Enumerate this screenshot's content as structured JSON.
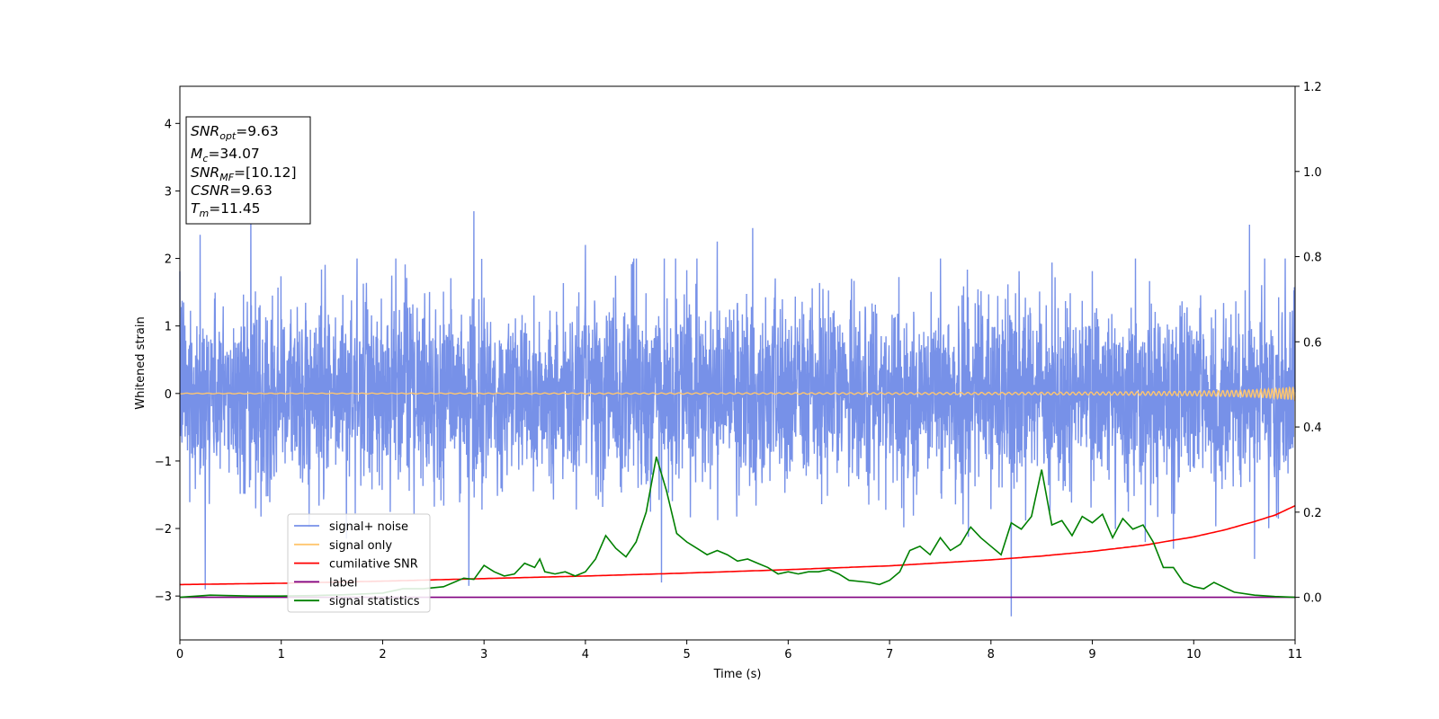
{
  "chart_data": {
    "type": "line",
    "xlabel": "Time (s)",
    "ylabel": "Whitened strain",
    "xlim": [
      0,
      11
    ],
    "ylim": [
      -3.65,
      4.55
    ],
    "y2lim": [
      -0.1,
      1.2
    ],
    "x_ticks": [
      "0",
      "1",
      "2",
      "3",
      "4",
      "5",
      "6",
      "7",
      "8",
      "9",
      "10",
      "11"
    ],
    "y_ticks": [
      "−3",
      "−2",
      "−1",
      "0",
      "1",
      "2",
      "3",
      "4"
    ],
    "y2_ticks": [
      "0.0",
      "0.2",
      "0.4",
      "0.6",
      "0.8",
      "1.0",
      "1.2"
    ],
    "grid": false,
    "legend_position": "lower-left",
    "annotation_box": {
      "lines": [
        {
          "sym": "SNR",
          "sub": "opt",
          "value": "=9.63"
        },
        {
          "sym": "M",
          "sub": "c",
          "value": "=34.07"
        },
        {
          "sym": "SNR",
          "sub": "MF",
          "value": "=[10.12]"
        },
        {
          "sym": "CSNR",
          "sub": "",
          "value": "=9.63"
        },
        {
          "sym": "T",
          "sub": "m",
          "value": "=11.45"
        }
      ]
    },
    "series": [
      {
        "name": "signal+ noise",
        "color": "#7791e8",
        "axis": "left",
        "style": "noise",
        "sigma": 0.85,
        "peaks": [
          [
            0.2,
            2.35
          ],
          [
            0.7,
            2.65
          ],
          [
            2.9,
            2.7
          ],
          [
            4.0,
            2.2
          ],
          [
            5.3,
            2.25
          ],
          [
            5.65,
            2.45
          ],
          [
            10.55,
            2.5
          ],
          [
            0.25,
            -2.9
          ],
          [
            2.85,
            -2.85
          ],
          [
            4.75,
            -2.8
          ],
          [
            8.2,
            -3.3
          ],
          [
            10.6,
            -2.45
          ],
          [
            9.8,
            -2.3
          ]
        ]
      },
      {
        "name": "signal only",
        "color": "#ffc66e",
        "axis": "left",
        "style": "chirp",
        "t_merge": 11.45,
        "amplitude_end": 0.1
      },
      {
        "name": "cumilative SNR",
        "color": "#ff0000",
        "axis": "right",
        "x": [
          0,
          1,
          2,
          3,
          4,
          5,
          6,
          7,
          8,
          8.5,
          9,
          9.5,
          10,
          10.3,
          10.6,
          10.8,
          11
        ],
        "values": [
          0.03,
          0.033,
          0.038,
          0.044,
          0.05,
          0.057,
          0.065,
          0.074,
          0.088,
          0.097,
          0.108,
          0.122,
          0.142,
          0.158,
          0.178,
          0.193,
          0.215
        ]
      },
      {
        "name": "label",
        "color": "#800080",
        "axis": "right",
        "x": [
          0,
          11
        ],
        "values": [
          0.0,
          0.0
        ]
      },
      {
        "name": "signal statistics",
        "color": "#008000",
        "axis": "right",
        "x": [
          0,
          0.3,
          0.5,
          0.7,
          1.0,
          1.3,
          1.6,
          2.0,
          2.2,
          2.4,
          2.6,
          2.8,
          2.9,
          3.0,
          3.1,
          3.2,
          3.3,
          3.4,
          3.5,
          3.55,
          3.6,
          3.7,
          3.8,
          3.9,
          4.0,
          4.1,
          4.2,
          4.3,
          4.4,
          4.5,
          4.6,
          4.7,
          4.8,
          4.9,
          5.0,
          5.1,
          5.2,
          5.3,
          5.4,
          5.5,
          5.6,
          5.7,
          5.8,
          5.9,
          6.0,
          6.1,
          6.2,
          6.3,
          6.4,
          6.5,
          6.6,
          6.8,
          6.9,
          7.0,
          7.1,
          7.2,
          7.3,
          7.4,
          7.5,
          7.6,
          7.7,
          7.8,
          7.9,
          8.0,
          8.1,
          8.2,
          8.3,
          8.4,
          8.5,
          8.6,
          8.7,
          8.8,
          8.9,
          9.0,
          9.1,
          9.2,
          9.3,
          9.4,
          9.5,
          9.6,
          9.7,
          9.8,
          9.9,
          10.0,
          10.1,
          10.2,
          10.4,
          10.6,
          10.8,
          11.0
        ],
        "values": [
          0.0,
          0.005,
          0.004,
          0.003,
          0.003,
          0.004,
          0.006,
          0.01,
          0.02,
          0.02,
          0.025,
          0.045,
          0.042,
          0.075,
          0.06,
          0.05,
          0.055,
          0.08,
          0.07,
          0.09,
          0.06,
          0.055,
          0.06,
          0.05,
          0.06,
          0.09,
          0.145,
          0.115,
          0.095,
          0.13,
          0.2,
          0.33,
          0.25,
          0.15,
          0.13,
          0.115,
          0.1,
          0.11,
          0.1,
          0.085,
          0.09,
          0.08,
          0.07,
          0.055,
          0.06,
          0.055,
          0.06,
          0.06,
          0.065,
          0.055,
          0.04,
          0.035,
          0.03,
          0.04,
          0.06,
          0.11,
          0.12,
          0.1,
          0.14,
          0.11,
          0.125,
          0.165,
          0.14,
          0.12,
          0.1,
          0.175,
          0.16,
          0.19,
          0.3,
          0.17,
          0.18,
          0.145,
          0.19,
          0.175,
          0.195,
          0.14,
          0.185,
          0.16,
          0.17,
          0.13,
          0.07,
          0.07,
          0.035,
          0.025,
          0.02,
          0.035,
          0.012,
          0.005,
          0.002,
          0.0
        ]
      }
    ]
  }
}
